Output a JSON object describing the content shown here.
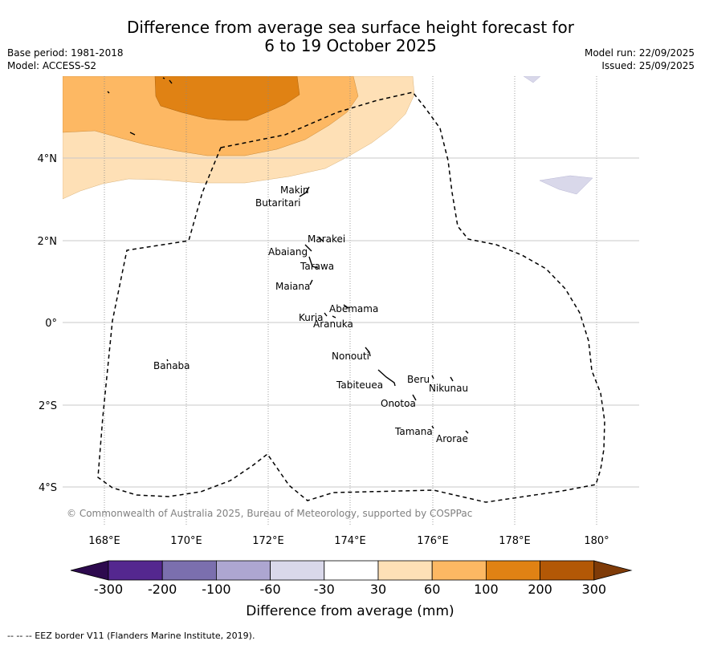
{
  "title": {
    "line1": "Difference from average sea surface height forecast for",
    "line2": "6 to 19 October 2025"
  },
  "meta": {
    "base_period": "Base period: 1981-2018",
    "model": "Model: ACCESS-S2",
    "model_run": "Model run: 22/09/2025",
    "issued": "Issued: 25/09/2025"
  },
  "axes": {
    "lon_ticks": [
      "168°E",
      "170°E",
      "172°E",
      "174°E",
      "176°E",
      "178°E",
      "180°"
    ],
    "lat_ticks": [
      "4°N",
      "2°N",
      "0°",
      "2°S",
      "4°S"
    ]
  },
  "islands": [
    "Makin",
    "Butaritari",
    "Marakei",
    "Abaiang",
    "Tarawa",
    "Maiana",
    "Abemama",
    "Kuria",
    "Aranuka",
    "Banaba",
    "Nonouti",
    "Tabiteuea",
    "Beru",
    "Nikunau",
    "Onotoa",
    "Tamana",
    "Arorae"
  ],
  "copyright": "© Commonwealth of Australia 2025, Bureau of Meteorology, supported by COSPPac",
  "colorbar": {
    "ticks": [
      "-300",
      "-200",
      "-100",
      "-60",
      "-30",
      "30",
      "60",
      "100",
      "200",
      "300"
    ],
    "colors": [
      "#2d0a4e",
      "#54278f",
      "#7b6fae",
      "#ada6d1",
      "#d9d8ea",
      "#ffffff",
      "#fee0b6",
      "#fdb863",
      "#e08214",
      "#b35806",
      "#7f3b08"
    ],
    "label": "Difference from average (mm)"
  },
  "footer": "--  --  -- EEZ border V11 (Flanders Marine Institute, 2019)."
}
